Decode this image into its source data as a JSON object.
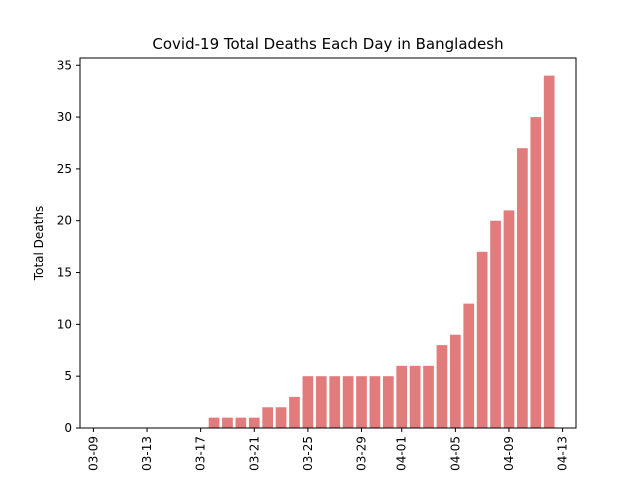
{
  "chart_data": {
    "type": "bar",
    "title": "Covid-19 Total Deaths Each Day in Bangladesh",
    "xlabel": "",
    "ylabel": "Total Deaths",
    "bar_color": "#e27c7c",
    "ylim": [
      0,
      35.7
    ],
    "yticks": [
      0,
      5,
      10,
      15,
      20,
      25,
      30,
      35
    ],
    "x_start": "03-08",
    "x_end": "04-14",
    "xticks": [
      "03-09",
      "03-13",
      "03-17",
      "03-21",
      "03-25",
      "03-29",
      "04-01",
      "04-05",
      "04-09",
      "04-13"
    ],
    "categories": [
      "03-18",
      "03-19",
      "03-20",
      "03-21",
      "03-22",
      "03-23",
      "03-24",
      "03-25",
      "03-26",
      "03-27",
      "03-28",
      "03-29",
      "03-30",
      "03-31",
      "04-01",
      "04-02",
      "04-03",
      "04-04",
      "04-05",
      "04-06",
      "04-07",
      "04-08",
      "04-09",
      "04-10",
      "04-11",
      "04-12"
    ],
    "values": [
      1,
      1,
      1,
      1,
      2,
      2,
      3,
      5,
      5,
      5,
      5,
      5,
      5,
      5,
      6,
      6,
      6,
      8,
      9,
      12,
      17,
      20,
      21,
      27,
      30,
      34
    ]
  }
}
